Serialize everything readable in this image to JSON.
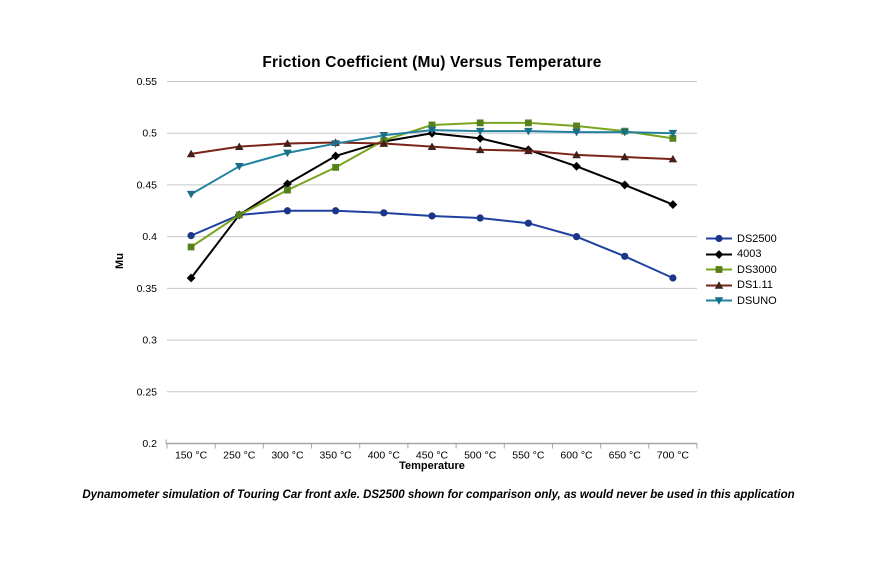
{
  "caption": "Dynamometer simulation of Touring Car front axle. DS2500 shown for comparison only, as would never be used in this application",
  "chart_data": {
    "type": "line",
    "title": "Friction Coefficient (Mu) Versus Temperature",
    "xlabel": "Temperature",
    "ylabel": "Mu",
    "categories": [
      "150 °C",
      "250 °C",
      "300 °C",
      "350 °C",
      "400 °C",
      "450 °C",
      "500 °C",
      "550 °C",
      "600 °C",
      "650 °C",
      "700 °C"
    ],
    "ylim": [
      0.2,
      0.55
    ],
    "yticks": [
      {
        "v": 0.2,
        "label": "0.2"
      },
      {
        "v": 0.25,
        "label": "0.25"
      },
      {
        "v": 0.3,
        "label": "0.3"
      },
      {
        "v": 0.35,
        "label": "0.35"
      },
      {
        "v": 0.4,
        "label": "0.4"
      },
      {
        "v": 0.45,
        "label": "0.45"
      },
      {
        "v": 0.5,
        "label": "0.5"
      },
      {
        "v": 0.55,
        "label": "0.55"
      }
    ],
    "grid": true,
    "grid_color": "#C8C8C8",
    "axis_color": "#A6A6A6",
    "legend_position": "right",
    "series": [
      {
        "name": "DS2500",
        "marker": "circle",
        "line_color": "#1F419F",
        "marker_color": "#1B3688",
        "values": [
          0.401,
          0.421,
          0.425,
          0.425,
          0.423,
          0.42,
          0.418,
          0.413,
          0.4,
          0.381,
          0.36
        ]
      },
      {
        "name": "4003",
        "marker": "diamond",
        "line_color": "#000000",
        "marker_color": "#000000",
        "values": [
          0.36,
          0.421,
          0.451,
          0.478,
          0.492,
          0.5,
          0.495,
          0.484,
          0.468,
          0.45,
          0.431
        ]
      },
      {
        "name": "DS3000",
        "marker": "square",
        "line_color": "#79A41E",
        "marker_color": "#55801A",
        "values": [
          0.39,
          0.421,
          0.445,
          0.467,
          0.493,
          0.508,
          0.51,
          0.51,
          0.507,
          0.502,
          0.495
        ]
      },
      {
        "name": "DS1.11",
        "marker": "triangle-up",
        "line_color": "#7A2318",
        "marker_color": "#44201A",
        "values": [
          0.48,
          0.487,
          0.49,
          0.491,
          0.49,
          0.487,
          0.484,
          0.483,
          0.479,
          0.477,
          0.475
        ]
      },
      {
        "name": "DSUNO",
        "marker": "triangle-down",
        "line_color": "#2382A1",
        "marker_color": "#1A6E88",
        "values": [
          0.441,
          0.468,
          0.481,
          0.49,
          0.498,
          0.503,
          0.502,
          0.502,
          0.501,
          0.501,
          0.5
        ]
      }
    ]
  }
}
